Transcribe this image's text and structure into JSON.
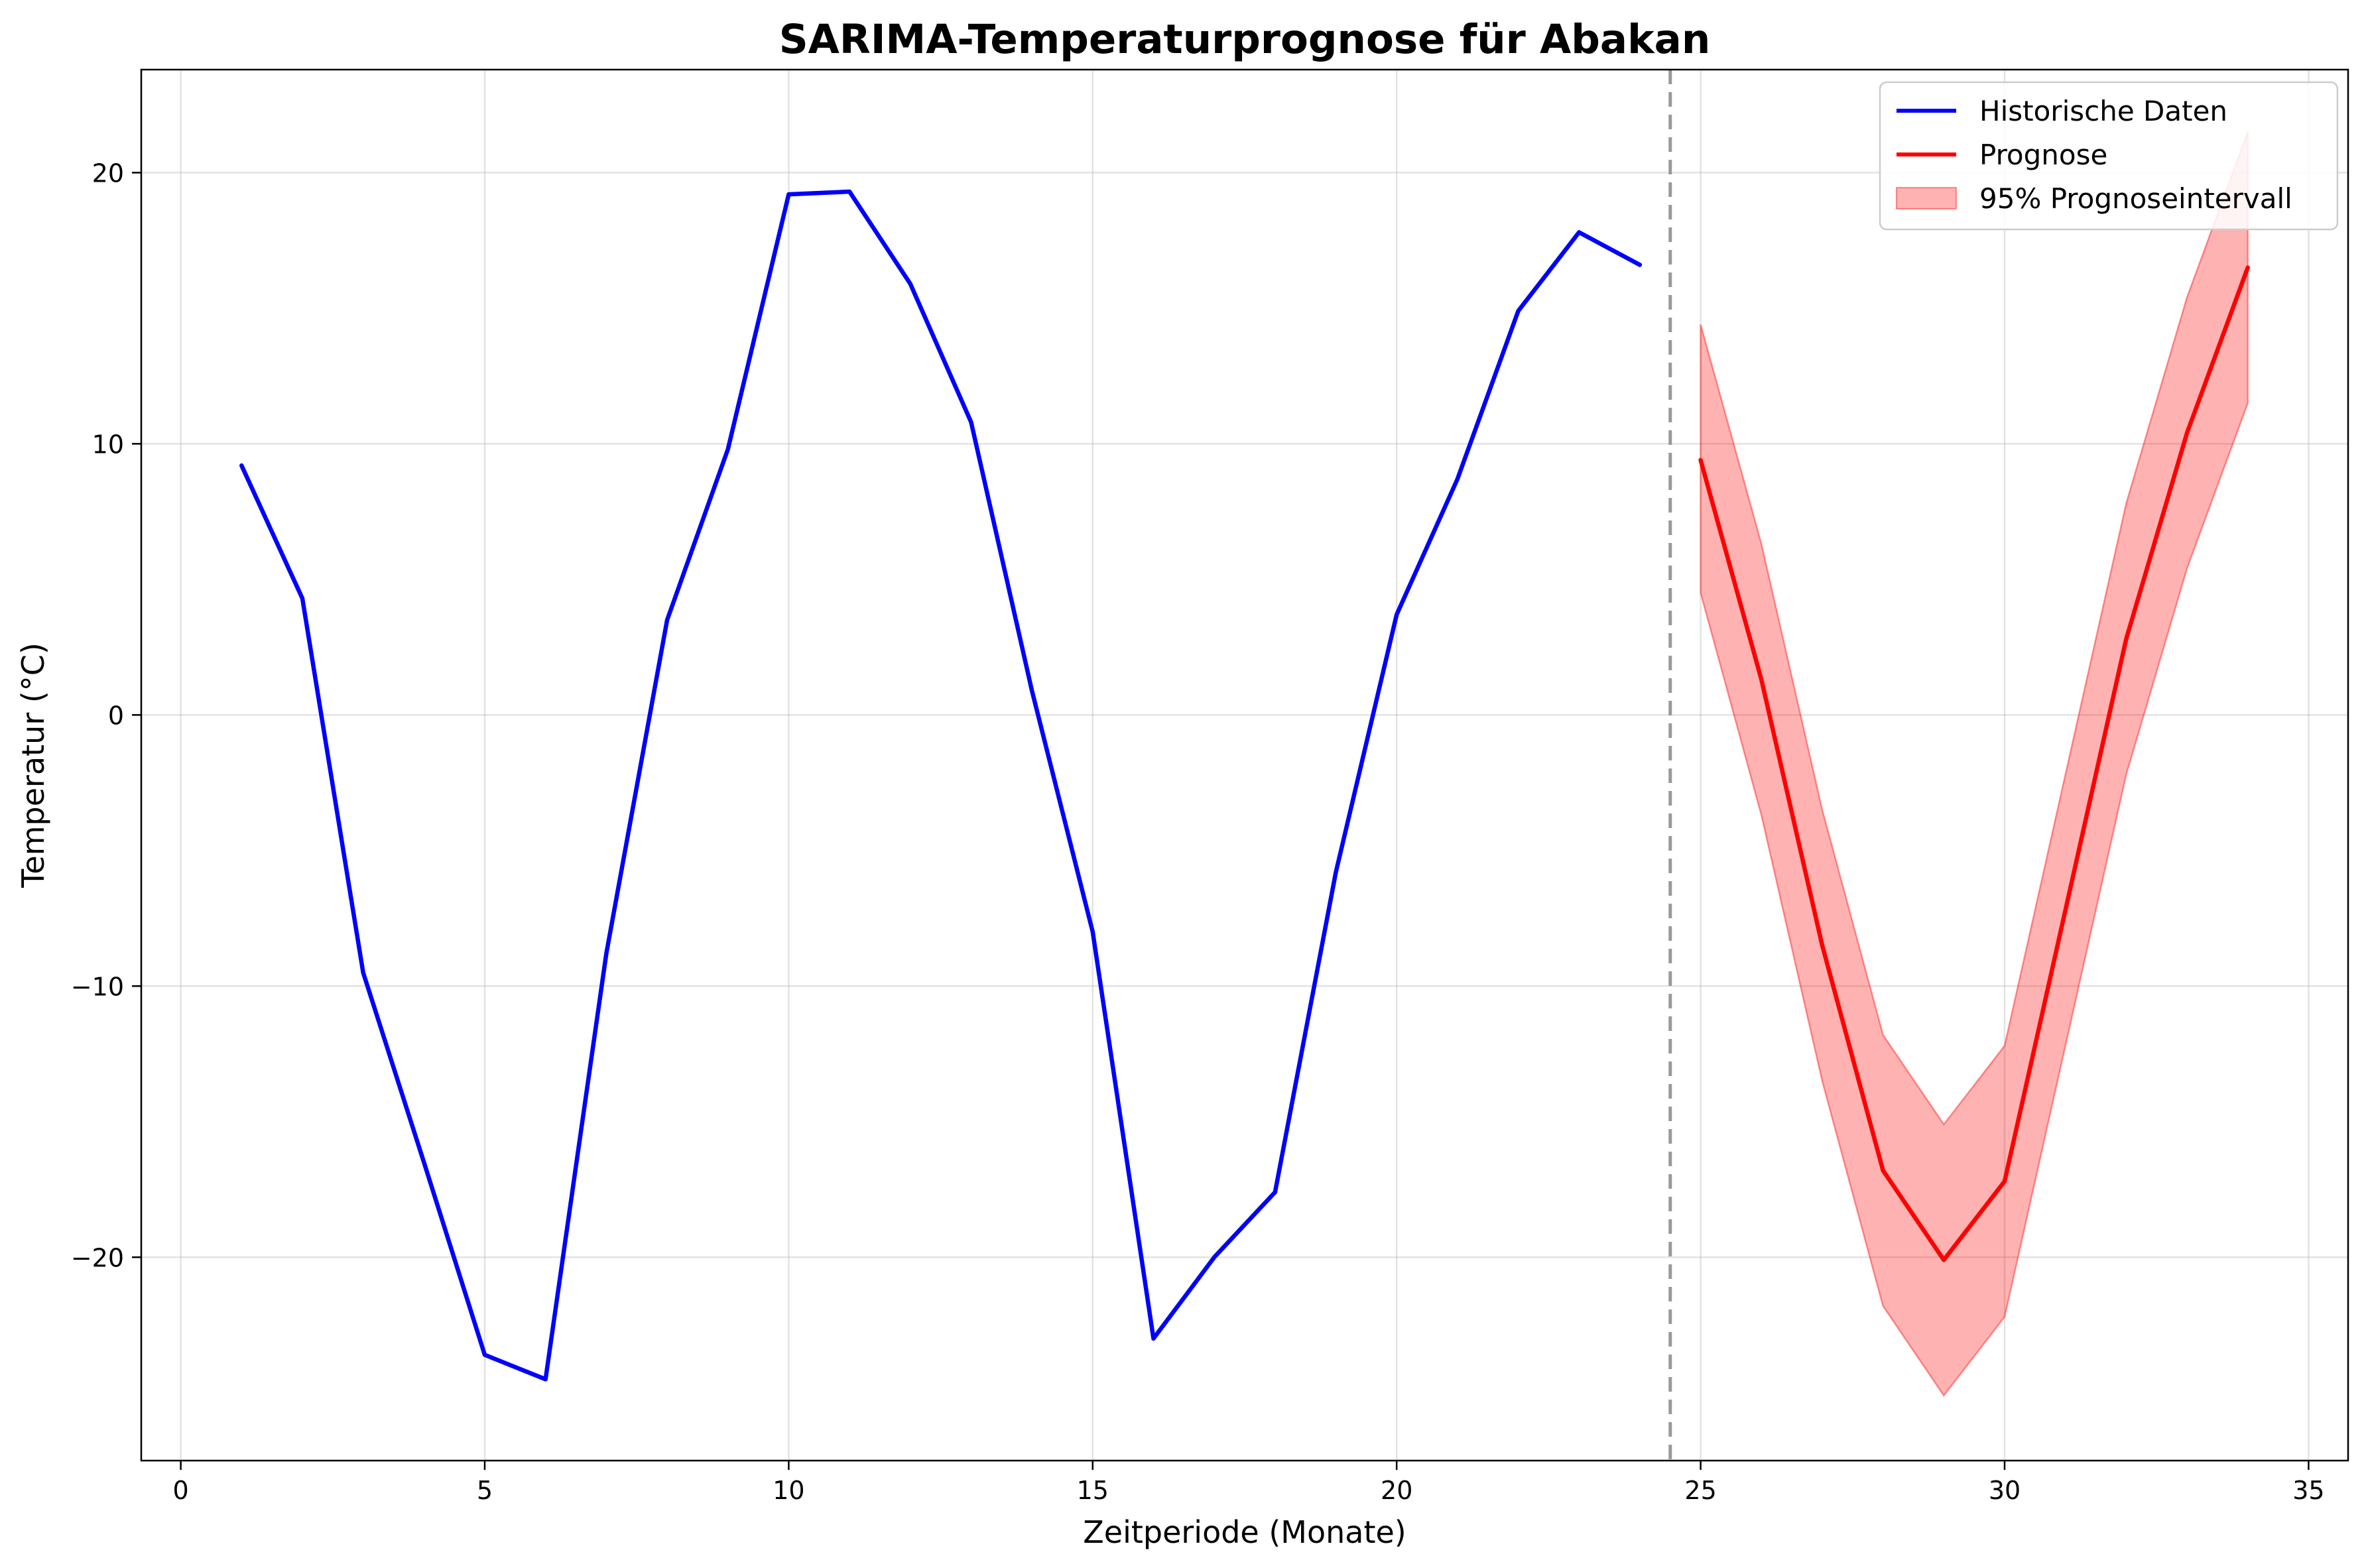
{
  "chart_data": {
    "type": "line",
    "title": "SARIMA-Temperaturprognose für Abakan",
    "xlabel": "Zeitperiode (Monate)",
    "ylabel": "Temperatur (°C)",
    "xlim": [
      -0.65,
      35.65
    ],
    "ylim": [
      -27.5,
      23.8
    ],
    "xticks": [
      0,
      5,
      10,
      15,
      20,
      25,
      30,
      35
    ],
    "yticks": [
      -20,
      -10,
      0,
      10,
      20
    ],
    "xtick_labels": [
      "0",
      "5",
      "10",
      "15",
      "20",
      "25",
      "30",
      "35"
    ],
    "ytick_labels": [
      "−20",
      "−10",
      "0",
      "10",
      "20"
    ],
    "grid": true,
    "legend_position": "top-right",
    "split_line": {
      "x": 24.5,
      "style": "dashed",
      "color": "#999999"
    },
    "series": [
      {
        "name": "Historische Daten",
        "color": "#0000ff",
        "x": [
          1,
          2,
          3,
          4,
          5,
          6,
          7,
          8,
          9,
          10,
          11,
          12,
          13,
          14,
          15,
          16,
          17,
          18,
          19,
          20,
          21,
          22,
          23,
          24
        ],
        "y": [
          9.2,
          4.3,
          -9.5,
          -16.5,
          -23.6,
          -24.5,
          -8.8,
          3.5,
          9.8,
          19.2,
          19.3,
          15.9,
          10.8,
          0.9,
          -8.0,
          -23.0,
          -20.0,
          -17.6,
          -5.8,
          3.7,
          8.7,
          14.9,
          17.8,
          16.6
        ]
      },
      {
        "name": "Prognose",
        "color": "#ff0000",
        "x": [
          25,
          26,
          27,
          28,
          29,
          30,
          31,
          32,
          33,
          34
        ],
        "y": [
          9.4,
          1.3,
          -8.5,
          -16.8,
          -20.1,
          -17.2,
          -7.2,
          2.8,
          10.4,
          16.5
        ]
      }
    ],
    "interval": {
      "name": "95% Prognoseintervall",
      "color": "#ff0000",
      "opacity": 0.3,
      "x": [
        25,
        26,
        27,
        28,
        29,
        30,
        31,
        32,
        33,
        34
      ],
      "lower": [
        4.5,
        -3.7,
        -13.5,
        -21.8,
        -25.1,
        -22.2,
        -12.2,
        -2.2,
        5.4,
        11.5
      ],
      "upper": [
        14.4,
        6.3,
        -3.5,
        -11.8,
        -15.1,
        -12.2,
        -2.2,
        7.8,
        15.4,
        21.5
      ]
    }
  }
}
